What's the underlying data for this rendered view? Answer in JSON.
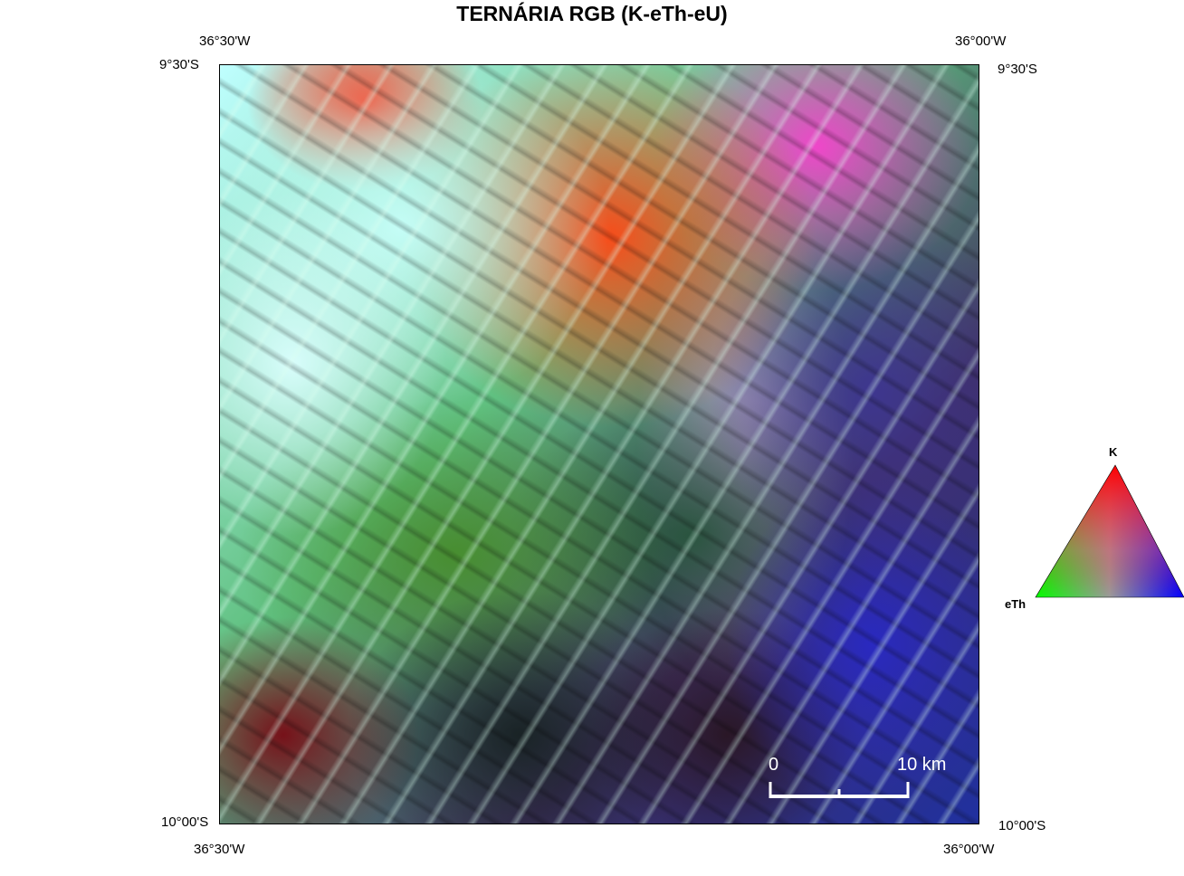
{
  "title": "TERNÁRIA RGB (K-eTh-eU)",
  "coordinates": {
    "top_left_lon": "36°30'W",
    "top_right_lon": "36°00'W",
    "bottom_left_lon": "36°30'W",
    "bottom_right_lon": "36°00'W",
    "top_left_lat": "9°30'S",
    "top_right_lat": "9°30'S",
    "bottom_left_lat": "10°00'S",
    "bottom_right_lat": "10°00'S"
  },
  "scale_bar": {
    "start_label": "0",
    "end_label": "10 km",
    "length_km": 10,
    "color": "#ffffff"
  },
  "ternary_legend": {
    "top_label": "K",
    "left_label": "eTh",
    "colors": {
      "K": "#ff0000",
      "eTh": "#00ff00",
      "eU": "#0000ff"
    }
  }
}
